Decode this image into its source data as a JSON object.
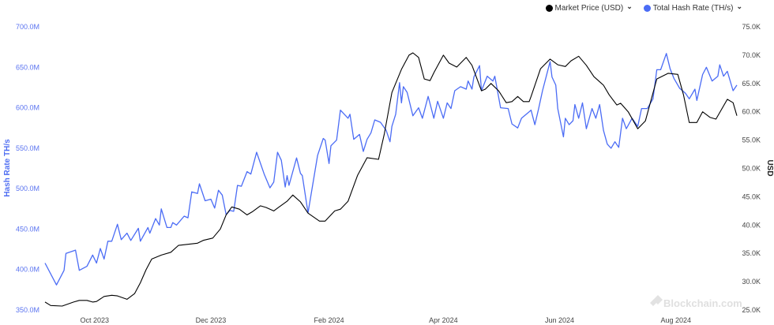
{
  "chart_data": {
    "type": "line",
    "watermark": "Blockchain.com",
    "legend": {
      "placement": "top-right",
      "items": [
        {
          "label": "Market Price (USD)",
          "color": "#000000"
        },
        {
          "label": "Total Hash Rate (TH/s)",
          "color": "#4b6cf5"
        }
      ]
    },
    "grid": false,
    "x_ticks": [
      {
        "date": "2023-10-01",
        "label": "Oct 2023"
      },
      {
        "date": "2023-12-01",
        "label": "Dec 2023"
      },
      {
        "date": "2024-02-01",
        "label": "Feb 2024"
      },
      {
        "date": "2024-04-01",
        "label": "Apr 2024"
      },
      {
        "date": "2024-06-01",
        "label": "Jun 2024"
      },
      {
        "date": "2024-08-01",
        "label": "Aug 2024"
      }
    ],
    "xlim": [
      "2023-09-05",
      "2024-09-02"
    ],
    "y_left": {
      "label": "Hash Rate TH/s",
      "range": [
        350,
        700
      ],
      "ticks": [
        "350.0M",
        "400.0M",
        "450.0M",
        "500.0M",
        "550.0M",
        "600.0M",
        "650.0M",
        "700.0M"
      ],
      "tick_values": [
        350,
        400,
        450,
        500,
        550,
        600,
        650,
        700
      ],
      "color": "#5b74f0"
    },
    "y_right": {
      "label": "USD",
      "range": [
        25,
        75
      ],
      "ticks": [
        "25.0K",
        "30.0K",
        "35.0K",
        "40.0K",
        "45.0K",
        "50.0K",
        "55.0K",
        "60.0K",
        "65.0K",
        "70.0K",
        "75.0K"
      ],
      "tick_values": [
        25,
        30,
        35,
        40,
        45,
        50,
        55,
        60,
        65,
        70,
        75
      ]
    },
    "series": [
      {
        "name": "Total Hash Rate (TH/s)",
        "axis": "left",
        "unit": "M TH/s",
        "color": "#4b6cf5",
        "points": [
          [
            "2023-09-05",
            408
          ],
          [
            "2023-09-11",
            381
          ],
          [
            "2023-09-15",
            399
          ],
          [
            "2023-09-16",
            420
          ],
          [
            "2023-09-21",
            424
          ],
          [
            "2023-09-23",
            399
          ],
          [
            "2023-09-27",
            404
          ],
          [
            "2023-09-30",
            418
          ],
          [
            "2023-10-02",
            408
          ],
          [
            "2023-10-04",
            426
          ],
          [
            "2023-10-06",
            413
          ],
          [
            "2023-10-08",
            435
          ],
          [
            "2023-10-10",
            435
          ],
          [
            "2023-10-13",
            456
          ],
          [
            "2023-10-15",
            437
          ],
          [
            "2023-10-18",
            445
          ],
          [
            "2023-10-20",
            436
          ],
          [
            "2023-10-24",
            451
          ],
          [
            "2023-10-25",
            435
          ],
          [
            "2023-10-29",
            452
          ],
          [
            "2023-10-30",
            445
          ],
          [
            "2023-11-02",
            463
          ],
          [
            "2023-11-04",
            455
          ],
          [
            "2023-11-05",
            475
          ],
          [
            "2023-11-08",
            452
          ],
          [
            "2023-11-10",
            452
          ],
          [
            "2023-11-11",
            458
          ],
          [
            "2023-11-13",
            455
          ],
          [
            "2023-11-17",
            466
          ],
          [
            "2023-11-19",
            464
          ],
          [
            "2023-11-21",
            496
          ],
          [
            "2023-11-24",
            494
          ],
          [
            "2023-11-25",
            506
          ],
          [
            "2023-11-28",
            485
          ],
          [
            "2023-12-01",
            487
          ],
          [
            "2023-12-03",
            476
          ],
          [
            "2023-12-05",
            498
          ],
          [
            "2023-12-07",
            492
          ],
          [
            "2023-12-09",
            468
          ],
          [
            "2023-12-11",
            473
          ],
          [
            "2023-12-13",
            472
          ],
          [
            "2023-12-15",
            504
          ],
          [
            "2023-12-17",
            503
          ],
          [
            "2023-12-20",
            521
          ],
          [
            "2023-12-22",
            518
          ],
          [
            "2023-12-25",
            545
          ],
          [
            "2023-12-29",
            518
          ],
          [
            "2024-01-01",
            501
          ],
          [
            "2024-01-03",
            508
          ],
          [
            "2024-01-05",
            545
          ],
          [
            "2024-01-07",
            535
          ],
          [
            "2024-01-09",
            502
          ],
          [
            "2024-01-10",
            516
          ],
          [
            "2024-01-11",
            504
          ],
          [
            "2024-01-15",
            538
          ],
          [
            "2024-01-17",
            519
          ],
          [
            "2024-01-18",
            516
          ],
          [
            "2024-01-21",
            470
          ],
          [
            "2024-01-26",
            541
          ],
          [
            "2024-01-29",
            562
          ],
          [
            "2024-01-30",
            560
          ],
          [
            "2024-02-01",
            531
          ],
          [
            "2024-02-02",
            553
          ],
          [
            "2024-02-05",
            560
          ],
          [
            "2024-02-07",
            597
          ],
          [
            "2024-02-11",
            587
          ],
          [
            "2024-02-12",
            592
          ],
          [
            "2024-02-14",
            561
          ],
          [
            "2024-02-17",
            567
          ],
          [
            "2024-02-19",
            546
          ],
          [
            "2024-02-21",
            561
          ],
          [
            "2024-02-23",
            569
          ],
          [
            "2024-02-25",
            585
          ],
          [
            "2024-02-28",
            582
          ],
          [
            "2024-03-02",
            572
          ],
          [
            "2024-03-04",
            558
          ],
          [
            "2024-03-05",
            577
          ],
          [
            "2024-03-07",
            592
          ],
          [
            "2024-03-09",
            631
          ],
          [
            "2024-03-10",
            606
          ],
          [
            "2024-03-11",
            626
          ],
          [
            "2024-03-13",
            619
          ],
          [
            "2024-03-16",
            590
          ],
          [
            "2024-03-19",
            600
          ],
          [
            "2024-03-21",
            587
          ],
          [
            "2024-03-24",
            614
          ],
          [
            "2024-03-27",
            587
          ],
          [
            "2024-03-29",
            608
          ],
          [
            "2024-04-01",
            587
          ],
          [
            "2024-04-03",
            606
          ],
          [
            "2024-04-05",
            599
          ],
          [
            "2024-04-07",
            621
          ],
          [
            "2024-04-10",
            626
          ],
          [
            "2024-04-13",
            623
          ],
          [
            "2024-04-14",
            633
          ],
          [
            "2024-04-16",
            623
          ],
          [
            "2024-04-17",
            638
          ],
          [
            "2024-04-20",
            652
          ],
          [
            "2024-04-21",
            621
          ],
          [
            "2024-04-24",
            639
          ],
          [
            "2024-04-27",
            633
          ],
          [
            "2024-04-28",
            639
          ],
          [
            "2024-05-01",
            600
          ],
          [
            "2024-05-05",
            599
          ],
          [
            "2024-05-07",
            580
          ],
          [
            "2024-05-10",
            575
          ],
          [
            "2024-05-12",
            587
          ],
          [
            "2024-05-16",
            595
          ],
          [
            "2024-05-17",
            597
          ],
          [
            "2024-05-19",
            579
          ],
          [
            "2024-05-21",
            599
          ],
          [
            "2024-05-23",
            621
          ],
          [
            "2024-05-27",
            657
          ],
          [
            "2024-05-28",
            638
          ],
          [
            "2024-05-30",
            628
          ],
          [
            "2024-05-31",
            599
          ],
          [
            "2024-06-03",
            564
          ],
          [
            "2024-06-04",
            587
          ],
          [
            "2024-06-06",
            579
          ],
          [
            "2024-06-08",
            584
          ],
          [
            "2024-06-09",
            604
          ],
          [
            "2024-06-11",
            587
          ],
          [
            "2024-06-13",
            606
          ],
          [
            "2024-06-15",
            574
          ],
          [
            "2024-06-18",
            599
          ],
          [
            "2024-06-20",
            587
          ],
          [
            "2024-06-22",
            604
          ],
          [
            "2024-06-24",
            572
          ],
          [
            "2024-06-26",
            555
          ],
          [
            "2024-06-28",
            550
          ],
          [
            "2024-06-30",
            558
          ],
          [
            "2024-07-02",
            551
          ],
          [
            "2024-07-04",
            587
          ],
          [
            "2024-07-06",
            574
          ],
          [
            "2024-07-09",
            587
          ],
          [
            "2024-07-12",
            577
          ],
          [
            "2024-07-14",
            599
          ],
          [
            "2024-07-17",
            599
          ],
          [
            "2024-07-20",
            611
          ],
          [
            "2024-07-22",
            647
          ],
          [
            "2024-07-24",
            647
          ],
          [
            "2024-07-27",
            667
          ],
          [
            "2024-07-29",
            648
          ],
          [
            "2024-07-31",
            636
          ],
          [
            "2024-08-03",
            624
          ],
          [
            "2024-08-06",
            618
          ],
          [
            "2024-08-08",
            611
          ],
          [
            "2024-08-11",
            623
          ],
          [
            "2024-08-12",
            609
          ],
          [
            "2024-08-15",
            641
          ],
          [
            "2024-08-17",
            650
          ],
          [
            "2024-08-20",
            633
          ],
          [
            "2024-08-23",
            639
          ],
          [
            "2024-08-24",
            653
          ],
          [
            "2024-08-26",
            639
          ],
          [
            "2024-08-28",
            645
          ],
          [
            "2024-08-31",
            621
          ],
          [
            "2024-09-02",
            628
          ]
        ]
      },
      {
        "name": "Market Price (USD)",
        "axis": "right",
        "unit": "K USD",
        "color": "#000000",
        "points": [
          [
            "2023-09-05",
            26.4
          ],
          [
            "2023-09-08",
            25.8
          ],
          [
            "2023-09-14",
            25.7
          ],
          [
            "2023-09-20",
            26.4
          ],
          [
            "2023-09-23",
            26.7
          ],
          [
            "2023-09-27",
            26.7
          ],
          [
            "2023-09-30",
            26.4
          ],
          [
            "2023-10-02",
            26.5
          ],
          [
            "2023-10-06",
            27.4
          ],
          [
            "2023-10-10",
            27.6
          ],
          [
            "2023-10-13",
            27.5
          ],
          [
            "2023-10-18",
            26.9
          ],
          [
            "2023-10-22",
            27.9
          ],
          [
            "2023-10-25",
            29.8
          ],
          [
            "2023-10-28",
            32.1
          ],
          [
            "2023-10-31",
            34.0
          ],
          [
            "2023-11-05",
            34.7
          ],
          [
            "2023-11-10",
            35.2
          ],
          [
            "2023-11-14",
            36.4
          ],
          [
            "2023-11-19",
            36.6
          ],
          [
            "2023-11-24",
            36.8
          ],
          [
            "2023-11-27",
            37.3
          ],
          [
            "2023-12-02",
            37.7
          ],
          [
            "2023-12-06",
            39.3
          ],
          [
            "2023-12-09",
            41.8
          ],
          [
            "2023-12-12",
            43.2
          ],
          [
            "2023-12-16",
            42.8
          ],
          [
            "2023-12-20",
            41.8
          ],
          [
            "2023-12-23",
            42.4
          ],
          [
            "2023-12-27",
            43.4
          ],
          [
            "2023-12-30",
            43.1
          ],
          [
            "2024-01-03",
            42.5
          ],
          [
            "2024-01-05",
            43.0
          ],
          [
            "2024-01-10",
            44.2
          ],
          [
            "2024-01-13",
            45.3
          ],
          [
            "2024-01-17",
            44.1
          ],
          [
            "2024-01-21",
            42.1
          ],
          [
            "2024-01-27",
            40.7
          ],
          [
            "2024-01-30",
            40.7
          ],
          [
            "2024-02-04",
            42.5
          ],
          [
            "2024-02-07",
            42.8
          ],
          [
            "2024-02-11",
            44.2
          ],
          [
            "2024-02-16",
            48.8
          ],
          [
            "2024-02-21",
            51.9
          ],
          [
            "2024-02-27",
            51.6
          ],
          [
            "2024-03-01",
            56.1
          ],
          [
            "2024-03-05",
            63.4
          ],
          [
            "2024-03-10",
            67.5
          ],
          [
            "2024-03-14",
            70.0
          ],
          [
            "2024-03-16",
            70.4
          ],
          [
            "2024-03-19",
            69.6
          ],
          [
            "2024-03-22",
            65.8
          ],
          [
            "2024-03-25",
            65.5
          ],
          [
            "2024-03-27",
            66.9
          ],
          [
            "2024-04-01",
            70.0
          ],
          [
            "2024-04-04",
            68.6
          ],
          [
            "2024-04-08",
            67.9
          ],
          [
            "2024-04-13",
            69.6
          ],
          [
            "2024-04-16",
            68.2
          ],
          [
            "2024-04-21",
            63.7
          ],
          [
            "2024-04-23",
            64.0
          ],
          [
            "2024-04-26",
            65.0
          ],
          [
            "2024-04-30",
            63.7
          ],
          [
            "2024-05-04",
            61.6
          ],
          [
            "2024-05-07",
            61.8
          ],
          [
            "2024-05-10",
            62.7
          ],
          [
            "2024-05-13",
            61.8
          ],
          [
            "2024-05-16",
            61.8
          ],
          [
            "2024-05-17",
            62.7
          ],
          [
            "2024-05-22",
            67.6
          ],
          [
            "2024-05-27",
            69.3
          ],
          [
            "2024-05-31",
            68.3
          ],
          [
            "2024-06-04",
            68.0
          ],
          [
            "2024-06-07",
            69.0
          ],
          [
            "2024-06-11",
            69.8
          ],
          [
            "2024-06-15",
            68.2
          ],
          [
            "2024-06-19",
            66.2
          ],
          [
            "2024-06-24",
            64.7
          ],
          [
            "2024-06-27",
            63.0
          ],
          [
            "2024-07-01",
            61.2
          ],
          [
            "2024-07-03",
            61.5
          ],
          [
            "2024-07-07",
            60.0
          ],
          [
            "2024-07-12",
            57.0
          ],
          [
            "2024-07-16",
            58.4
          ],
          [
            "2024-07-22",
            65.8
          ],
          [
            "2024-07-28",
            66.8
          ],
          [
            "2024-08-02",
            66.6
          ],
          [
            "2024-08-05",
            63.0
          ],
          [
            "2024-08-08",
            58.1
          ],
          [
            "2024-08-12",
            58.1
          ],
          [
            "2024-08-15",
            60.0
          ],
          [
            "2024-08-19",
            59.0
          ],
          [
            "2024-08-22",
            58.7
          ],
          [
            "2024-08-28",
            62.2
          ],
          [
            "2024-08-31",
            61.6
          ],
          [
            "2024-09-02",
            59.3
          ]
        ]
      }
    ]
  }
}
